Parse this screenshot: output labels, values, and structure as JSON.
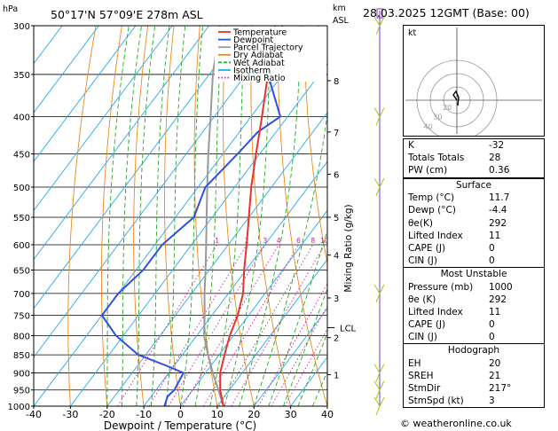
{
  "header": {
    "hpa_label": "hPa",
    "location": "50°17'N  57°09'E  278m  ASL",
    "km_label": "km",
    "asl_label": "ASL",
    "datetime": "28.03.2025  12GMT  (Base: 00)"
  },
  "chart_data": {
    "type": "skew-t log-p",
    "xlabel": "Dewpoint / Temperature (°C)",
    "ylabel_right": "Mixing Ratio (g/kg)",
    "x_ticks": [
      -40,
      -30,
      -20,
      -10,
      0,
      10,
      20,
      30,
      40
    ],
    "pressure_levels": [
      300,
      350,
      400,
      450,
      500,
      550,
      600,
      650,
      700,
      750,
      800,
      850,
      900,
      950,
      1000
    ],
    "km_ticks": [
      {
        "label": "8",
        "p": 357
      },
      {
        "label": "7",
        "p": 420
      },
      {
        "label": "6",
        "p": 480
      },
      {
        "label": "5",
        "p": 550
      },
      {
        "label": "4",
        "p": 620
      },
      {
        "label": "3",
        "p": 710
      },
      {
        "label": "2",
        "p": 805
      },
      {
        "label": "1",
        "p": 905
      }
    ],
    "lcl": {
      "label": "LCL",
      "p": 780
    },
    "mixing_ratio_labels": [
      "1",
      "2",
      "3",
      "4",
      "6",
      "8",
      "10",
      "16",
      "20",
      "25"
    ],
    "mixing_ratios": [
      1,
      2,
      3,
      4,
      6,
      8,
      10,
      16,
      20,
      25
    ],
    "temperature": [
      [
        1000,
        11.7
      ],
      [
        950,
        7.5
      ],
      [
        900,
        4
      ],
      [
        850,
        1.5
      ],
      [
        800,
        -1
      ],
      [
        750,
        -3
      ],
      [
        700,
        -6
      ],
      [
        650,
        -10.5
      ],
      [
        600,
        -15
      ],
      [
        550,
        -20
      ],
      [
        500,
        -25.5
      ],
      [
        450,
        -31
      ],
      [
        400,
        -37
      ],
      [
        350,
        -44
      ],
      [
        300,
        -50
      ]
    ],
    "dewpoint": [
      [
        1000,
        -4.4
      ],
      [
        970,
        -5.5
      ],
      [
        950,
        -5
      ],
      [
        900,
        -6
      ],
      [
        880,
        -12
      ],
      [
        850,
        -22
      ],
      [
        800,
        -32
      ],
      [
        750,
        -40
      ],
      [
        700,
        -40
      ],
      [
        650,
        -38
      ],
      [
        600,
        -38
      ],
      [
        550,
        -35
      ],
      [
        500,
        -38
      ],
      [
        450,
        -36
      ],
      [
        420,
        -35
      ],
      [
        400,
        -32
      ],
      [
        350,
        -44
      ],
      [
        300,
        -52
      ]
    ],
    "parcel": [
      [
        1000,
        11.7
      ],
      [
        950,
        7
      ],
      [
        900,
        2
      ],
      [
        850,
        -3
      ],
      [
        800,
        -8
      ],
      [
        750,
        -12
      ],
      [
        700,
        -16.5
      ],
      [
        650,
        -21
      ],
      [
        600,
        -26
      ],
      [
        550,
        -31.5
      ],
      [
        500,
        -37.5
      ],
      [
        450,
        -44
      ],
      [
        400,
        -51
      ],
      [
        350,
        -59
      ],
      [
        300,
        -67
      ]
    ],
    "legend": [
      {
        "label": "Temperature",
        "color": "#e8332a"
      },
      {
        "label": "Dewpoint",
        "color": "#2e4fe0"
      },
      {
        "label": "Parcel Trajectory",
        "color": "#999999"
      },
      {
        "label": "Dry Adiabat",
        "color": "#e88a1a"
      },
      {
        "label": "Wet Adiabat",
        "color": "#22aa22"
      },
      {
        "label": "Isotherm",
        "color": "#22aaee"
      },
      {
        "label": "Mixing Ratio",
        "color": "#d11aa0"
      }
    ],
    "wind_barbs_p": [
      300,
      400,
      500,
      700,
      900,
      950,
      1000
    ]
  },
  "hodograph": {
    "label": "kt",
    "ring_labels": [
      "20",
      "30",
      "40"
    ]
  },
  "indices": [
    {
      "label": "K",
      "value": "-32"
    },
    {
      "label": "Totals Totals",
      "value": "28"
    },
    {
      "label": "PW (cm)",
      "value": "0.36"
    }
  ],
  "surface": {
    "title": "Surface",
    "rows": [
      {
        "label": "Temp (°C)",
        "value": "11.7"
      },
      {
        "label": "Dewp (°C)",
        "value": "-4.4"
      },
      {
        "label": "θe(K)",
        "value": "292"
      },
      {
        "label": "Lifted Index",
        "value": "11"
      },
      {
        "label": "CAPE (J)",
        "value": "0"
      },
      {
        "label": "CIN (J)",
        "value": "0"
      }
    ]
  },
  "unstable": {
    "title": "Most Unstable",
    "rows": [
      {
        "label": "Pressure (mb)",
        "value": "1000"
      },
      {
        "label": "θe (K)",
        "value": "292"
      },
      {
        "label": "Lifted Index",
        "value": "11"
      },
      {
        "label": "CAPE (J)",
        "value": "0"
      },
      {
        "label": "CIN (J)",
        "value": "0"
      }
    ]
  },
  "hodo_table": {
    "title": "Hodograph",
    "rows": [
      {
        "label": "EH",
        "value": "20"
      },
      {
        "label": "SREH",
        "value": "21"
      },
      {
        "label": "StmDir",
        "value": "217°"
      },
      {
        "label": "StmSpd (kt)",
        "value": "3"
      }
    ]
  },
  "credit": "© weatheronline.co.uk"
}
